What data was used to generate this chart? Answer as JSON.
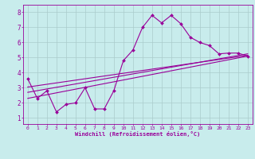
{
  "title": "",
  "xlabel": "Windchill (Refroidissement éolien,°C)",
  "bg_color": "#c8ecec",
  "line_color": "#990099",
  "grid_color": "#aacccc",
  "xlim": [
    -0.5,
    23.5
  ],
  "ylim": [
    0.6,
    8.5
  ],
  "xticks": [
    0,
    1,
    2,
    3,
    4,
    5,
    6,
    7,
    8,
    9,
    10,
    11,
    12,
    13,
    14,
    15,
    16,
    17,
    18,
    19,
    20,
    21,
    22,
    23
  ],
  "yticks": [
    1,
    2,
    3,
    4,
    5,
    6,
    7,
    8
  ],
  "main_x": [
    0,
    1,
    2,
    3,
    4,
    5,
    6,
    7,
    8,
    9,
    10,
    11,
    12,
    13,
    14,
    15,
    16,
    17,
    18,
    19,
    20,
    21,
    22,
    23
  ],
  "main_y": [
    3.6,
    2.3,
    2.8,
    1.4,
    1.9,
    2.0,
    3.0,
    1.6,
    1.6,
    2.8,
    4.8,
    5.5,
    7.0,
    7.8,
    7.3,
    7.8,
    7.25,
    6.35,
    6.0,
    5.8,
    5.25,
    5.3,
    5.3,
    5.1
  ],
  "line1_x": [
    0,
    23
  ],
  "line1_y": [
    2.3,
    5.1
  ],
  "line2_x": [
    0,
    23
  ],
  "line2_y": [
    2.7,
    5.25
  ],
  "line3_x": [
    0,
    23
  ],
  "line3_y": [
    3.05,
    5.15
  ]
}
